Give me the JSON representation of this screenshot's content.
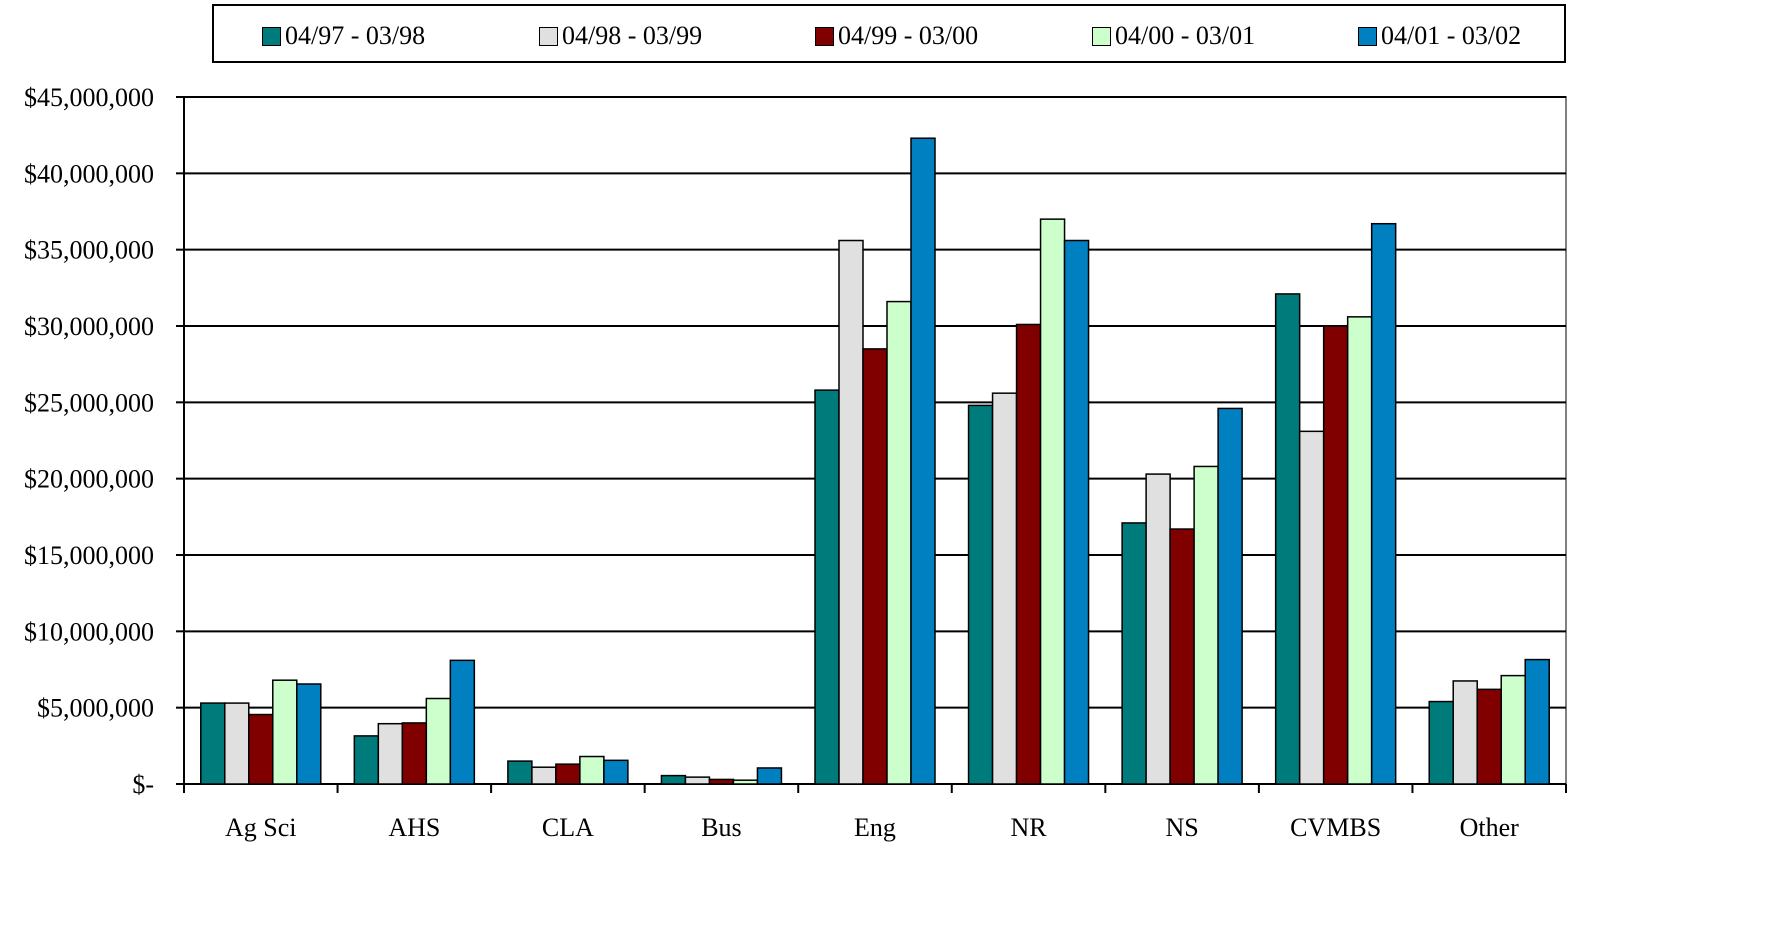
{
  "chart_data": {
    "type": "bar",
    "categories": [
      "Ag Sci",
      "AHS",
      "CLA",
      "Bus",
      "Eng",
      "NR",
      "NS",
      "CVMBS",
      "Other"
    ],
    "series": [
      {
        "name": "04/97 - 03/98",
        "color": "#007B7B",
        "values": [
          5300000,
          3150000,
          1500000,
          550000,
          25800000,
          24800000,
          17100000,
          32100000,
          5400000
        ]
      },
      {
        "name": "04/98 - 03/99",
        "color": "#E0E0E0",
        "values": [
          5300000,
          3950000,
          1100000,
          450000,
          35600000,
          25600000,
          20300000,
          23100000,
          6750000
        ]
      },
      {
        "name": "04/99 - 03/00",
        "color": "#800000",
        "values": [
          4550000,
          4000000,
          1300000,
          300000,
          28500000,
          30100000,
          16700000,
          30000000,
          6200000
        ]
      },
      {
        "name": "04/00 - 03/01",
        "color": "#CCFFCC",
        "values": [
          6800000,
          5600000,
          1800000,
          250000,
          31600000,
          37000000,
          20800000,
          30600000,
          7100000
        ]
      },
      {
        "name": "04/01 - 03/02",
        "color": "#0080C0",
        "values": [
          6550000,
          8100000,
          1550000,
          1050000,
          42300000,
          35600000,
          24600000,
          36700000,
          8150000
        ]
      }
    ],
    "ylim": [
      0,
      45000000
    ],
    "yticks": [
      0,
      5000000,
      10000000,
      15000000,
      20000000,
      25000000,
      30000000,
      35000000,
      40000000,
      45000000
    ],
    "ytick_labels": [
      "$-",
      "$5,000,000",
      "$10,000,000",
      "$15,000,000",
      "$20,000,000",
      "$25,000,000",
      "$30,000,000",
      "$35,000,000",
      "$40,000,000",
      "$45,000,000"
    ],
    "grid": true,
    "legend_position": "top"
  }
}
